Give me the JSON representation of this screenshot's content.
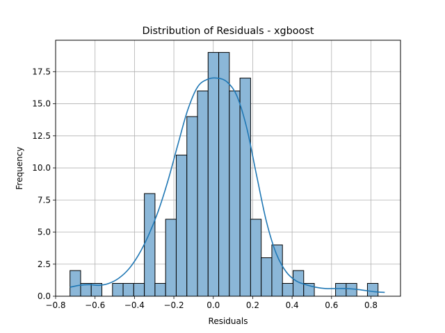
{
  "chart_data": {
    "type": "bar",
    "subtype": "histogram-with-kde",
    "title": "Distribution of Residuals - xgboost",
    "xlabel": "Residuals",
    "ylabel": "Frequency",
    "xlim": [
      -0.8,
      0.95
    ],
    "ylim": [
      0,
      19.95
    ],
    "grid": true,
    "xticks": [
      -0.8,
      -0.6,
      -0.4,
      -0.2,
      0.0,
      0.2,
      0.4,
      0.6,
      0.8
    ],
    "xtick_labels": [
      "−0.8",
      "−0.6",
      "−0.4",
      "−0.2",
      "0.0",
      "0.2",
      "0.4",
      "0.6",
      "0.8"
    ],
    "yticks": [
      0.0,
      2.5,
      5.0,
      7.5,
      10.0,
      12.5,
      15.0,
      17.5
    ],
    "ytick_labels": [
      "0.0",
      "2.5",
      "5.0",
      "7.5",
      "10.0",
      "12.5",
      "15.0",
      "17.5"
    ],
    "bin_start": -0.727,
    "bin_width": 0.0539,
    "counts": [
      2,
      1,
      1,
      0,
      1,
      1,
      1,
      8,
      1,
      6,
      11,
      14,
      16,
      19,
      19,
      16,
      17,
      6,
      3,
      4,
      1,
      2,
      1,
      0,
      0,
      1,
      1,
      0,
      1
    ],
    "kde": {
      "x": [
        -0.727,
        -0.68,
        -0.63,
        -0.58,
        -0.53,
        -0.48,
        -0.43,
        -0.38,
        -0.33,
        -0.28,
        -0.23,
        -0.18,
        -0.13,
        -0.08,
        -0.03,
        0.02,
        0.07,
        0.12,
        0.17,
        0.22,
        0.27,
        0.32,
        0.37,
        0.42,
        0.47,
        0.52,
        0.57,
        0.62,
        0.67,
        0.72,
        0.77,
        0.82,
        0.87
      ],
      "y": [
        0.7,
        0.85,
        0.9,
        0.85,
        1.0,
        1.4,
        2.1,
        3.2,
        4.7,
        6.6,
        9.0,
        11.8,
        14.5,
        16.3,
        16.9,
        17.0,
        16.7,
        15.6,
        13.1,
        9.4,
        5.8,
        3.3,
        1.9,
        1.2,
        0.9,
        0.7,
        0.6,
        0.6,
        0.6,
        0.55,
        0.45,
        0.35,
        0.3
      ]
    },
    "colors": {
      "bar_fill": "#8bb7d8",
      "bar_edge": "#000000",
      "kde_line": "#1f77b4",
      "grid": "#b0b0b0"
    }
  }
}
